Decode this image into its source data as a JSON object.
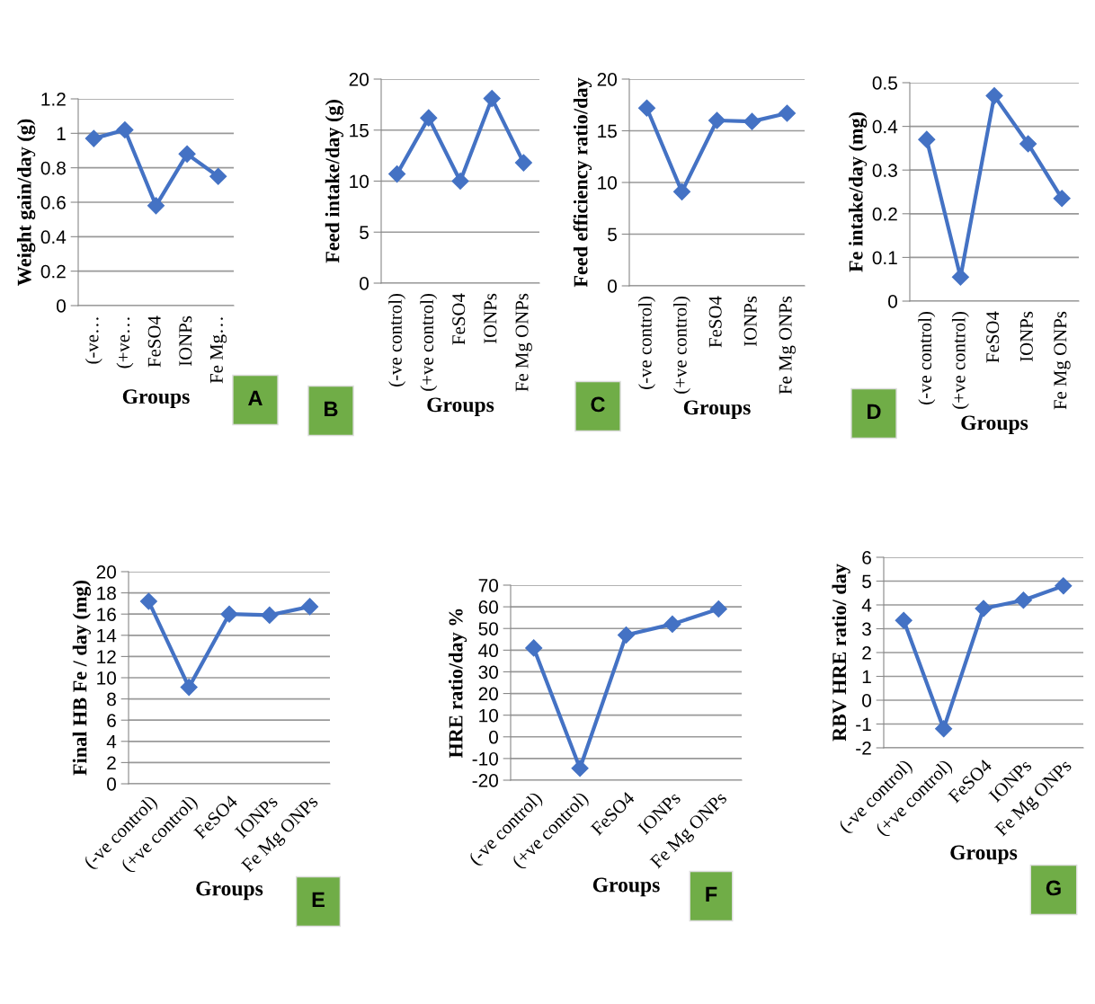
{
  "chart_data": [
    {
      "type": "line",
      "xlabel": "Groups",
      "ylabel": "Weight gain/day (g)",
      "categories": [
        "(-ve…",
        "(+ve…",
        "FeSO4",
        "IONPs",
        "Fe Mg…"
      ],
      "values": [
        0.97,
        1.02,
        0.58,
        0.88,
        0.75
      ],
      "color": "#4472c4",
      "ylim": [
        0,
        1.2
      ],
      "yticks": [
        0,
        0.2,
        0.4,
        0.6,
        0.8,
        1,
        1.2
      ],
      "grid": "y",
      "legend": false,
      "marker": "diamond",
      "line_style": "solid",
      "annotations": [
        "A"
      ]
    },
    {
      "type": "line",
      "xlabel": "Groups",
      "ylabel": "Feed intake/day (g)",
      "categories": [
        "(-ve control)",
        "(+ve control)",
        "FeSO4",
        "IONPs",
        "Fe Mg ONPs"
      ],
      "values": [
        10.7,
        16.2,
        10.0,
        18.1,
        11.8
      ],
      "color": "#4472c4",
      "ylim": [
        0,
        20
      ],
      "yticks": [
        0,
        5,
        10,
        15,
        20
      ],
      "grid": "y",
      "legend": false,
      "marker": "diamond",
      "line_style": "solid",
      "annotations": [
        "B"
      ]
    },
    {
      "type": "line",
      "xlabel": "Groups",
      "ylabel": "Feed efficiency ratio/day",
      "categories": [
        "(-ve control)",
        "(+ve control)",
        "FeSO4",
        "IONPs",
        "Fe Mg ONPs"
      ],
      "values": [
        17.2,
        9.1,
        16.0,
        15.9,
        16.7
      ],
      "color": "#4472c4",
      "ylim": [
        0,
        20
      ],
      "yticks": [
        0,
        5,
        10,
        15,
        20
      ],
      "grid": "y",
      "legend": false,
      "marker": "diamond",
      "line_style": "solid",
      "annotations": [
        "C"
      ]
    },
    {
      "type": "line",
      "xlabel": "Groups",
      "ylabel": "Fe intake/day (mg)",
      "categories": [
        "(-ve control)",
        "(+ve control)",
        "FeSO4",
        "IONPs",
        "Fe Mg ONPs"
      ],
      "values": [
        0.37,
        0.055,
        0.47,
        0.36,
        0.235
      ],
      "color": "#4472c4",
      "ylim": [
        0,
        0.5
      ],
      "yticks": [
        0,
        0.1,
        0.2,
        0.3,
        0.4,
        0.5
      ],
      "grid": "y",
      "legend": false,
      "marker": "diamond",
      "line_style": "solid",
      "annotations": [
        "D"
      ]
    },
    {
      "type": "line",
      "xlabel": "Groups",
      "ylabel": "Final HB Fe / day (mg)",
      "categories": [
        "(-ve control)",
        "(+ve control)",
        "FeSO4",
        "IONPs",
        "Fe Mg ONPs"
      ],
      "values": [
        17.2,
        9.1,
        16.0,
        15.9,
        16.7
      ],
      "color": "#4472c4",
      "ylim": [
        0,
        20
      ],
      "yticks": [
        0,
        2,
        4,
        6,
        8,
        10,
        12,
        14,
        16,
        18,
        20
      ],
      "grid": "y",
      "legend": false,
      "marker": "diamond",
      "line_style": "solid",
      "annotations": [
        "E"
      ]
    },
    {
      "type": "line",
      "xlabel": "Groups",
      "ylabel": "HRE ratio/day %",
      "categories": [
        "(-ve control)",
        "(+ve control)",
        "FeSO4",
        "IONPs",
        "Fe Mg ONPs"
      ],
      "values": [
        41,
        -14.5,
        47,
        52,
        59
      ],
      "color": "#4472c4",
      "ylim": [
        -20,
        70
      ],
      "yticks": [
        -20,
        -10,
        0,
        10,
        20,
        30,
        40,
        50,
        60,
        70
      ],
      "grid": "y",
      "legend": false,
      "marker": "diamond",
      "line_style": "solid",
      "annotations": [
        "F"
      ]
    },
    {
      "type": "line",
      "xlabel": "Groups",
      "ylabel": "RBV HRE ratio/ day",
      "categories": [
        "(-ve control)",
        "(+ve control)",
        "FeSO4",
        "IONPs",
        "Fe Mg ONPs"
      ],
      "values": [
        3.35,
        -1.2,
        3.85,
        4.2,
        4.8
      ],
      "color": "#4472c4",
      "ylim": [
        -2,
        6
      ],
      "yticks": [
        -2,
        -1,
        0,
        1,
        2,
        3,
        4,
        5,
        6
      ],
      "grid": "y",
      "legend": false,
      "marker": "diamond",
      "line_style": "solid",
      "annotations": [
        "G"
      ]
    }
  ]
}
